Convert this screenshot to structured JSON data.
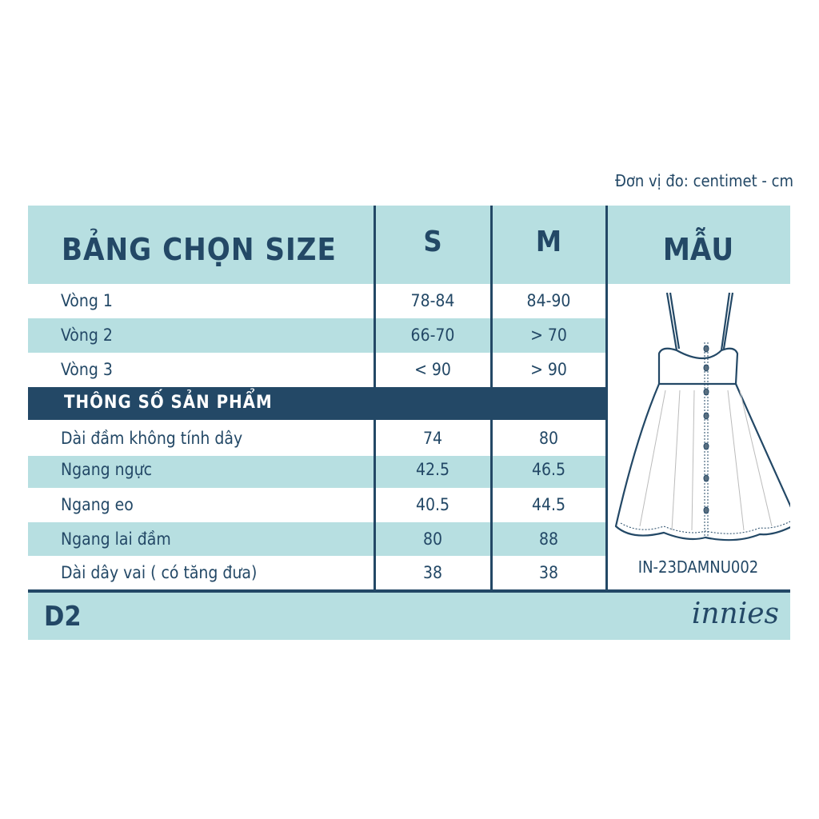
{
  "unit_note": "Đơn vị đo: centimet - cm",
  "header": {
    "title": "BẢNG CHỌN SIZE",
    "size_s": "S",
    "size_m": "M",
    "sample": "MẪU"
  },
  "body_rows": [
    {
      "label": "Vòng 1",
      "s": "78-84",
      "m": "84-90"
    },
    {
      "label": "Vòng 2",
      "s": "66-70",
      "m": "> 70"
    },
    {
      "label": "Vòng 3",
      "s": "< 90",
      "m": "> 90"
    }
  ],
  "section_title": "THÔNG SỐ SẢN PHẨM",
  "product_rows": [
    {
      "label": "Dài đầm không tính dây",
      "s": "74",
      "m": "80"
    },
    {
      "label": "Ngang ngực",
      "s": "42.5",
      "m": "46.5"
    },
    {
      "label": "Ngang eo",
      "s": "40.5",
      "m": "44.5"
    },
    {
      "label": "Ngang lai đầm",
      "s": "80",
      "m": "88"
    },
    {
      "label": "Dài dây vai ( có tăng đưa)",
      "s": "38",
      "m": "38"
    }
  ],
  "product_code": "IN-23DAMNU002",
  "footer": {
    "code": "D2",
    "brand_logo": "innies"
  },
  "colors": {
    "navy": "#234866",
    "teal": "#b7dfe1"
  }
}
